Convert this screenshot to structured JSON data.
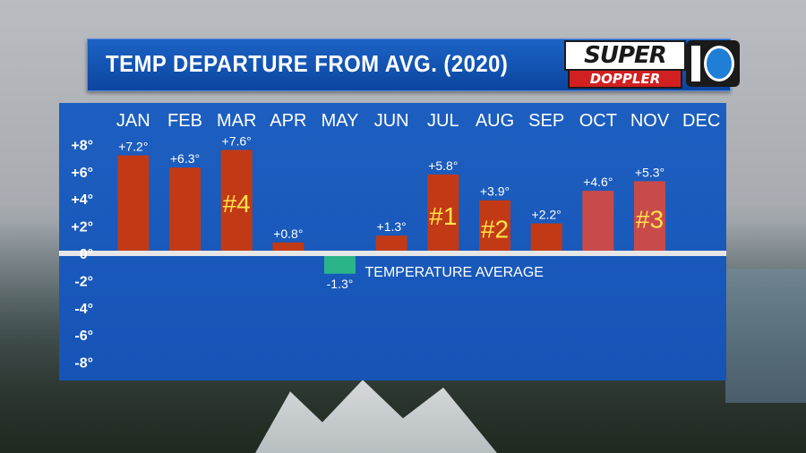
{
  "header": {
    "title": "TEMP DEPARTURE FROM AVG. (2020)"
  },
  "logo": {
    "word1": "SUPER",
    "word2": "DOPPLER",
    "number": "10"
  },
  "chart_data": {
    "type": "bar",
    "categories": [
      "JAN",
      "FEB",
      "MAR",
      "APR",
      "MAY",
      "JUN",
      "JUL",
      "AUG",
      "SEP",
      "OCT",
      "NOV",
      "DEC"
    ],
    "values": [
      7.2,
      6.3,
      7.6,
      0.8,
      -1.3,
      1.3,
      5.8,
      3.9,
      2.2,
      4.6,
      5.3,
      null
    ],
    "data_labels": [
      "+7.2°",
      "+6.3°",
      "+7.6°",
      "+0.8°",
      "-1.3°",
      "+1.3°",
      "+5.8°",
      "+3.9°",
      "+2.2°",
      "+4.6°",
      "+5.3°",
      ""
    ],
    "ranks": {
      "MAR": "#4",
      "JUL": "#1",
      "AUG": "#2",
      "NOV": "#3"
    },
    "y_tick_labels": [
      "+8°",
      "+6°",
      "+4°",
      "+2°",
      "0°",
      "-2°",
      "-4°",
      "-6°",
      "-8°"
    ],
    "y_ticks": [
      8,
      6,
      4,
      2,
      0,
      -2,
      -4,
      -6,
      -8
    ],
    "ylim": [
      -8,
      8
    ],
    "zero_line_label": "TEMPERATURE AVERAGE",
    "title": "TEMP DEPARTURE FROM AVG. (2020)",
    "colors": {
      "positive": "#c23a15",
      "positive_light": "#c94a4a",
      "negative": "#2bb38a",
      "rank": "#ffe24a",
      "zero_line": "#e6e6e6"
    }
  }
}
